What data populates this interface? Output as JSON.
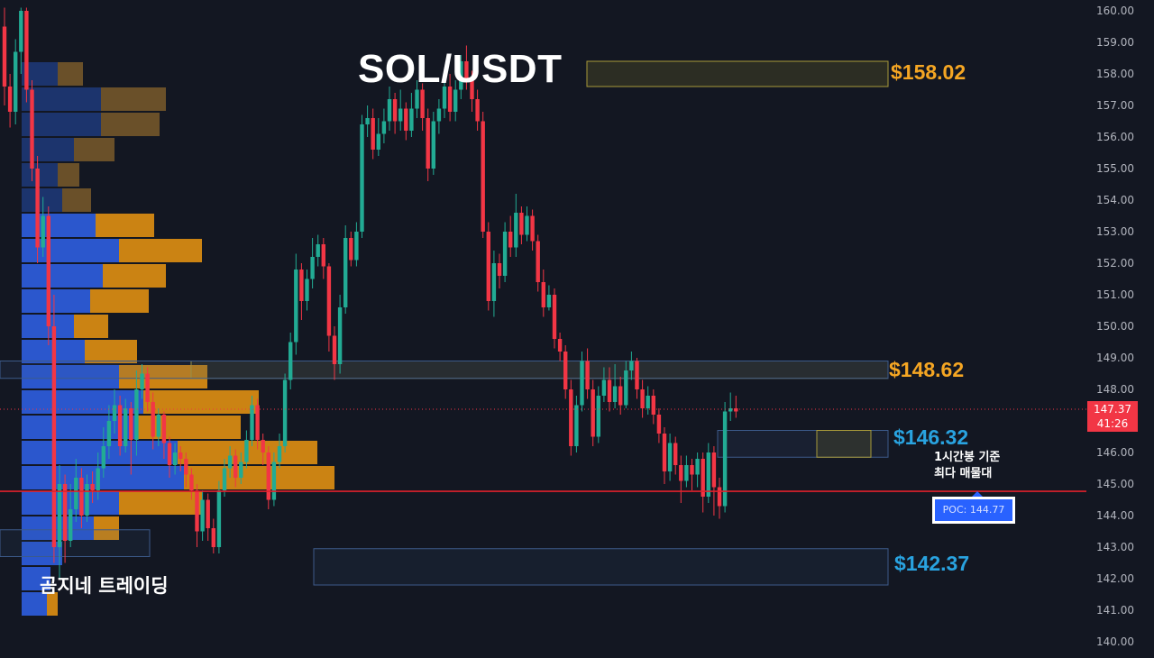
{
  "chart_data": {
    "type": "candlestick",
    "title": "SOL/USDT",
    "watermark": "곰지네 트레이딩",
    "ylim": [
      139.75,
      160.25
    ],
    "y_ticks": [
      "160.00",
      "159.00",
      "158.00",
      "157.00",
      "156.00",
      "155.00",
      "154.00",
      "153.00",
      "152.00",
      "151.00",
      "150.00",
      "149.00",
      "148.00",
      "147.00",
      "146.00",
      "145.00",
      "144.00",
      "143.00",
      "142.00",
      "141.00",
      "140.00"
    ],
    "y_tick_values": [
      160,
      159,
      158,
      157,
      156,
      155,
      154,
      153,
      152,
      151,
      150,
      149,
      148,
      147,
      146,
      145,
      144,
      143,
      142,
      141,
      140
    ],
    "current_price": {
      "label": "147.37",
      "countdown": "41:26",
      "value": 147.37
    },
    "levels": [
      {
        "label": "$158.02",
        "color": "gold",
        "top": 158.4,
        "bottom": 157.6
      },
      {
        "label": "$148.62",
        "color": "gold",
        "top": 148.9,
        "bottom": 148.35
      },
      {
        "label": "$146.32",
        "color": "blue",
        "top": 146.7,
        "bottom": 145.85
      },
      {
        "label": "$142.37",
        "color": "blue",
        "top": 142.95,
        "bottom": 141.8
      }
    ],
    "poc": {
      "label": "POC: 144.77",
      "value": 144.77
    },
    "annotation": {
      "line1": "1시간봉 기준",
      "line2": "최다 매물대"
    },
    "volume_profile": [
      {
        "price": 158.0,
        "buy": 40,
        "sell": 28
      },
      {
        "price": 157.2,
        "buy": 88,
        "sell": 72
      },
      {
        "price": 156.4,
        "buy": 88,
        "sell": 65
      },
      {
        "price": 155.6,
        "buy": 58,
        "sell": 45
      },
      {
        "price": 154.8,
        "buy": 40,
        "sell": 24
      },
      {
        "price": 154.0,
        "buy": 45,
        "sell": 32
      },
      {
        "price": 153.2,
        "buy": 82,
        "sell": 65
      },
      {
        "price": 152.4,
        "buy": 108,
        "sell": 92
      },
      {
        "price": 151.6,
        "buy": 90,
        "sell": 70
      },
      {
        "price": 150.8,
        "buy": 76,
        "sell": 65
      },
      {
        "price": 150.0,
        "buy": 58,
        "sell": 38
      },
      {
        "price": 149.2,
        "buy": 70,
        "sell": 58
      },
      {
        "price": 148.4,
        "buy": 108,
        "sell": 98
      },
      {
        "price": 147.6,
        "buy": 135,
        "sell": 128
      },
      {
        "price": 146.8,
        "buy": 128,
        "sell": 115
      },
      {
        "price": 146.0,
        "buy": 173,
        "sell": 155
      },
      {
        "price": 145.2,
        "buy": 180,
        "sell": 167
      },
      {
        "price": 144.4,
        "buy": 108,
        "sell": 92
      },
      {
        "price": 143.6,
        "buy": 80,
        "sell": 28
      },
      {
        "price": 142.8,
        "buy": 45,
        "sell": 0
      },
      {
        "price": 142.0,
        "buy": 32,
        "sell": 0
      },
      {
        "price": 141.2,
        "buy": 28,
        "sell": 12
      }
    ],
    "candles": [
      [
        159.5,
        157.6,
        160.1,
        157.0
      ],
      [
        157.6,
        156.8,
        158.0,
        156.3
      ],
      [
        156.8,
        158.7,
        159.1,
        156.4
      ],
      [
        158.7,
        160.0,
        160.1,
        158.0
      ],
      [
        160.0,
        157.5,
        160.1,
        157.1
      ],
      [
        157.5,
        155.0,
        157.8,
        154.6
      ],
      [
        155.0,
        152.5,
        155.4,
        152.0
      ],
      [
        152.5,
        153.5,
        154.1,
        152.2
      ],
      [
        153.5,
        150.0,
        153.8,
        149.4
      ],
      [
        150.0,
        143.0,
        151.0,
        142.5
      ],
      [
        143.0,
        145.0,
        145.6,
        142.0
      ],
      [
        145.0,
        143.2,
        145.3,
        142.5
      ],
      [
        143.2,
        144.2,
        145.0,
        143.0
      ],
      [
        144.2,
        145.2,
        145.8,
        143.8
      ],
      [
        145.2,
        144.0,
        145.5,
        143.6
      ],
      [
        144.0,
        145.0,
        145.3,
        143.8
      ],
      [
        145.0,
        144.8,
        145.4,
        144.4
      ],
      [
        144.8,
        145.5,
        146.0,
        144.5
      ],
      [
        145.5,
        146.2,
        146.8,
        145.2
      ],
      [
        146.2,
        147.0,
        147.5,
        145.8
      ],
      [
        147.0,
        147.5,
        148.0,
        146.6
      ],
      [
        147.5,
        146.2,
        147.8,
        145.9
      ],
      [
        146.2,
        147.4,
        147.7,
        146.0
      ],
      [
        147.4,
        146.4,
        147.6,
        145.3
      ],
      [
        146.4,
        148.0,
        148.6,
        145.9
      ],
      [
        148.0,
        148.5,
        148.8,
        147.7
      ],
      [
        148.5,
        147.6,
        148.7,
        147.3
      ],
      [
        147.6,
        146.5,
        147.9,
        146.1
      ],
      [
        146.5,
        147.2,
        147.4,
        146.2
      ],
      [
        147.2,
        146.3,
        147.3,
        145.8
      ],
      [
        146.3,
        145.6,
        146.5,
        145.2
      ],
      [
        145.6,
        146.0,
        146.3,
        145.3
      ],
      [
        146.0,
        145.8,
        146.2,
        145.4
      ],
      [
        145.8,
        145.3,
        146.0,
        144.9
      ],
      [
        145.3,
        144.8,
        145.5,
        144.5
      ],
      [
        144.8,
        143.5,
        145.0,
        143.0
      ],
      [
        143.5,
        144.5,
        144.8,
        143.2
      ],
      [
        144.5,
        143.6,
        144.7,
        143.2
      ],
      [
        143.6,
        143.0,
        143.9,
        142.8
      ],
      [
        143.0,
        144.8,
        145.1,
        142.8
      ],
      [
        144.8,
        145.5,
        145.8,
        144.6
      ],
      [
        145.5,
        145.9,
        146.2,
        145.2
      ],
      [
        145.9,
        145.2,
        146.1,
        144.9
      ],
      [
        145.2,
        145.7,
        146.0,
        145.0
      ],
      [
        145.7,
        146.4,
        146.7,
        145.5
      ],
      [
        146.4,
        147.5,
        147.8,
        146.2
      ],
      [
        147.5,
        146.4,
        147.7,
        146.1
      ],
      [
        146.4,
        146.0,
        146.6,
        145.6
      ],
      [
        146.0,
        144.5,
        146.2,
        144.2
      ],
      [
        144.5,
        145.7,
        146.0,
        144.3
      ],
      [
        145.7,
        146.2,
        146.6,
        145.5
      ],
      [
        146.2,
        148.3,
        148.5,
        146.0
      ],
      [
        148.3,
        149.5,
        149.8,
        148.0
      ],
      [
        149.5,
        151.8,
        152.3,
        149.1
      ],
      [
        151.8,
        150.8,
        152.0,
        150.2
      ],
      [
        150.8,
        151.5,
        151.8,
        150.5
      ],
      [
        151.5,
        152.2,
        152.8,
        151.2
      ],
      [
        152.2,
        152.6,
        152.9,
        151.9
      ],
      [
        152.6,
        151.9,
        152.8,
        151.5
      ],
      [
        151.9,
        149.7,
        152.0,
        149.2
      ],
      [
        149.7,
        148.8,
        150.0,
        148.3
      ],
      [
        148.8,
        150.6,
        151.0,
        148.5
      ],
      [
        150.6,
        152.8,
        153.2,
        150.4
      ],
      [
        152.8,
        152.1,
        153.0,
        151.9
      ],
      [
        152.1,
        153.0,
        153.3,
        151.9
      ],
      [
        153.0,
        156.4,
        156.7,
        152.8
      ],
      [
        156.4,
        156.6,
        157.0,
        156.0
      ],
      [
        156.6,
        155.6,
        156.9,
        155.3
      ],
      [
        155.6,
        156.1,
        156.6,
        155.4
      ],
      [
        156.1,
        156.5,
        156.9,
        155.8
      ],
      [
        156.5,
        157.2,
        157.6,
        156.2
      ],
      [
        157.2,
        156.5,
        157.4,
        156.1
      ],
      [
        156.5,
        156.9,
        157.5,
        156.2
      ],
      [
        156.9,
        156.2,
        157.1,
        155.9
      ],
      [
        156.2,
        156.9,
        157.4,
        156.0
      ],
      [
        156.9,
        157.5,
        157.8,
        156.6
      ],
      [
        157.5,
        156.6,
        157.7,
        156.2
      ],
      [
        156.6,
        155.0,
        156.9,
        154.6
      ],
      [
        155.0,
        156.5,
        156.8,
        154.8
      ],
      [
        156.5,
        156.9,
        157.2,
        156.1
      ],
      [
        156.9,
        157.6,
        158.0,
        156.6
      ],
      [
        157.6,
        156.8,
        158.0,
        156.5
      ],
      [
        156.8,
        157.5,
        157.8,
        156.5
      ],
      [
        157.5,
        158.4,
        158.6,
        157.2
      ],
      [
        158.4,
        157.8,
        158.9,
        157.5
      ],
      [
        157.8,
        157.2,
        158.1,
        156.8
      ],
      [
        157.2,
        156.5,
        157.5,
        156.2
      ],
      [
        156.5,
        153.0,
        156.8,
        152.8
      ],
      [
        153.0,
        150.8,
        153.3,
        150.5
      ],
      [
        150.8,
        152.0,
        152.4,
        150.3
      ],
      [
        152.0,
        151.6,
        152.3,
        151.2
      ],
      [
        151.6,
        153.0,
        153.3,
        151.4
      ],
      [
        153.0,
        152.5,
        153.5,
        152.2
      ],
      [
        152.5,
        153.6,
        154.2,
        152.2
      ],
      [
        153.6,
        152.9,
        153.8,
        152.6
      ],
      [
        152.9,
        153.5,
        153.8,
        152.7
      ],
      [
        153.5,
        152.7,
        153.7,
        152.4
      ],
      [
        152.7,
        151.4,
        152.9,
        151.1
      ],
      [
        151.4,
        150.6,
        151.8,
        150.3
      ],
      [
        150.6,
        151.0,
        151.3,
        150.5
      ],
      [
        151.0,
        149.6,
        151.2,
        149.3
      ],
      [
        149.6,
        149.2,
        149.8,
        148.9
      ],
      [
        149.2,
        148.0,
        149.4,
        147.7
      ],
      [
        148.0,
        146.2,
        148.3,
        145.9
      ],
      [
        146.2,
        147.5,
        147.8,
        146.0
      ],
      [
        147.5,
        148.9,
        149.2,
        147.3
      ],
      [
        148.9,
        148.0,
        149.3,
        147.7
      ],
      [
        148.0,
        146.5,
        148.3,
        146.2
      ],
      [
        146.5,
        147.8,
        148.1,
        146.3
      ],
      [
        147.8,
        148.3,
        148.7,
        147.6
      ],
      [
        148.3,
        147.6,
        148.7,
        147.3
      ],
      [
        147.6,
        148.1,
        148.8,
        147.4
      ],
      [
        148.1,
        147.5,
        148.4,
        147.2
      ],
      [
        147.5,
        148.6,
        148.9,
        147.4
      ],
      [
        148.6,
        148.9,
        149.2,
        148.3
      ],
      [
        148.9,
        148.0,
        149.0,
        147.7
      ],
      [
        148.0,
        147.4,
        148.3,
        147.1
      ],
      [
        147.4,
        147.8,
        148.1,
        147.2
      ],
      [
        147.8,
        147.2,
        148.0,
        146.9
      ],
      [
        147.2,
        146.6,
        147.4,
        146.3
      ],
      [
        146.6,
        145.4,
        146.8,
        145.0
      ],
      [
        145.4,
        146.3,
        146.6,
        145.1
      ],
      [
        146.3,
        145.6,
        146.5,
        145.3
      ],
      [
        145.6,
        145.1,
        145.9,
        144.4
      ],
      [
        145.1,
        145.6,
        145.9,
        144.9
      ],
      [
        145.6,
        145.3,
        145.8,
        144.8
      ],
      [
        145.3,
        145.8,
        146.0,
        144.9
      ],
      [
        145.8,
        144.6,
        146.0,
        144.1
      ],
      [
        144.6,
        146.0,
        146.3,
        144.4
      ],
      [
        146.0,
        144.9,
        146.2,
        144.0
      ],
      [
        144.9,
        144.3,
        145.2,
        143.9
      ],
      [
        144.3,
        147.3,
        147.6,
        144.1
      ],
      [
        147.3,
        147.4,
        147.9,
        147.0
      ],
      [
        147.4,
        147.3,
        147.8,
        147.1
      ]
    ]
  }
}
